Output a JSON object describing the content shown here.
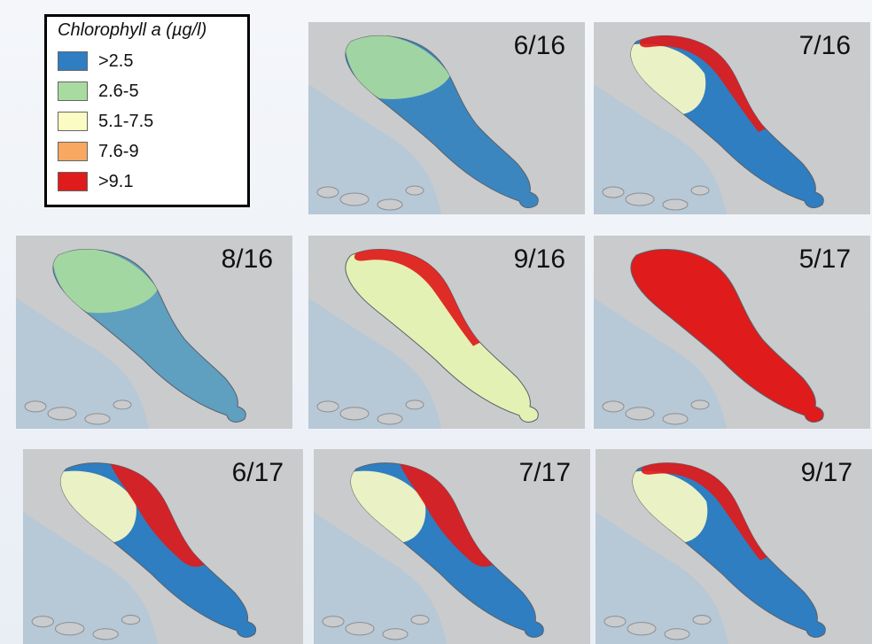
{
  "legend": {
    "title": "Chlorophyll a (µg/l)",
    "classes": [
      {
        "label": ">2.5",
        "color": "#2e7ec1"
      },
      {
        "label": "2.6-5",
        "color": "#a9dba0"
      },
      {
        "label": "5.1-7.5",
        "color": "#fbfbc4"
      },
      {
        "label": "7.6-9",
        "color": "#f8a860"
      },
      {
        "label": ">9.1",
        "color": "#df1b1b"
      }
    ]
  },
  "map": {
    "land_color": "#c9cbcd",
    "water_color": "#b7c8d6"
  },
  "panels": [
    {
      "date": "6/16",
      "base_color": "#3c86c0",
      "patches": [
        {
          "color": "#a9dba0",
          "where": "north"
        }
      ]
    },
    {
      "date": "7/16",
      "base_color": "#2e7ec1",
      "patches": [
        {
          "color": "#fbfbc4",
          "where": "north-mid"
        },
        {
          "color": "#df1b1b",
          "where": "north-rim"
        }
      ]
    },
    {
      "date": "8/16",
      "base_color": "#5f9fbf",
      "patches": [
        {
          "color": "#a9dba0",
          "where": "north"
        }
      ]
    },
    {
      "date": "9/16",
      "base_color": "#e3f2b4",
      "patches": [
        {
          "color": "#df1b1b",
          "where": "north-rim"
        }
      ]
    },
    {
      "date": "5/17",
      "base_color": "#df1b1b",
      "patches": []
    },
    {
      "date": "6/17",
      "base_color": "#2e7ec1",
      "patches": [
        {
          "color": "#fbfbc4",
          "where": "north-mid"
        },
        {
          "color": "#df1b1b",
          "where": "north-east"
        }
      ]
    },
    {
      "date": "7/17",
      "base_color": "#2e7ec1",
      "patches": [
        {
          "color": "#fbfbc4",
          "where": "north-mid"
        },
        {
          "color": "#df1b1b",
          "where": "north-east"
        }
      ]
    },
    {
      "date": "9/17",
      "base_color": "#2e7ec1",
      "patches": [
        {
          "color": "#fbfbc4",
          "where": "north-mid"
        },
        {
          "color": "#df1b1b",
          "where": "north-rim"
        }
      ]
    }
  ]
}
